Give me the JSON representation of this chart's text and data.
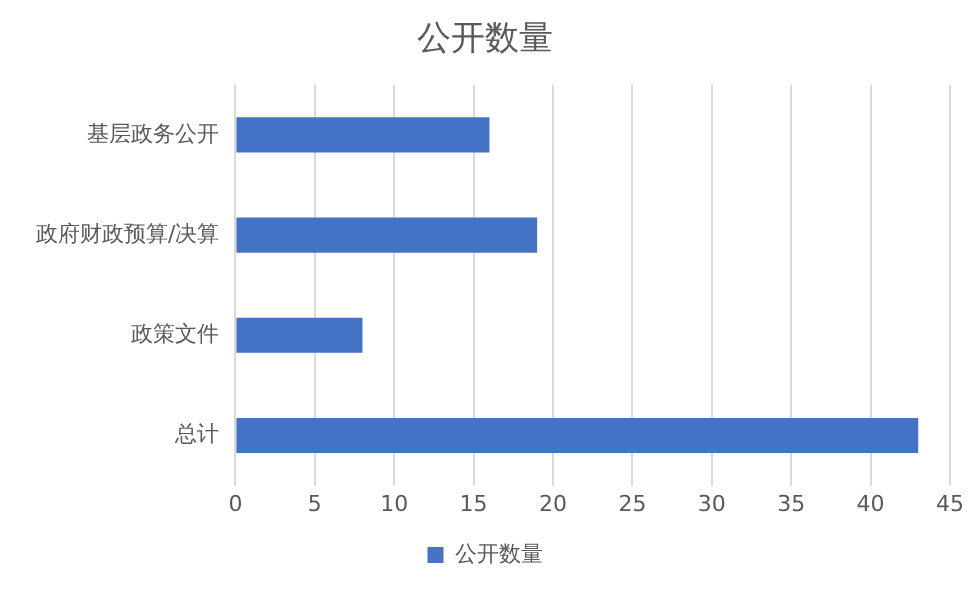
{
  "chart_data": {
    "type": "bar",
    "orientation": "horizontal",
    "title": "公开数量",
    "categories": [
      "基层政务公开",
      "政府财政预算/决算",
      "政策文件",
      "总计"
    ],
    "series": [
      {
        "name": "公开数量",
        "color": "#4472c4",
        "values": [
          16,
          19,
          8,
          43
        ]
      }
    ],
    "xlim": [
      0,
      45
    ],
    "xticks": [
      0,
      5,
      10,
      15,
      20,
      25,
      30,
      35,
      40,
      45
    ],
    "grid": "x",
    "legend": "bottom"
  }
}
